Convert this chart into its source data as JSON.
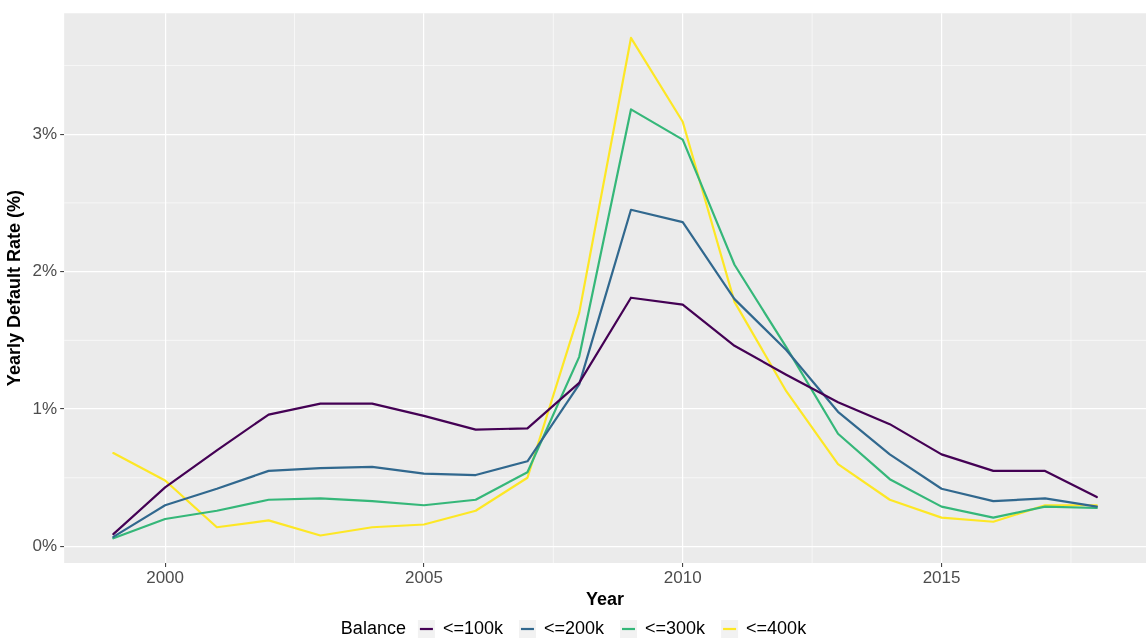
{
  "chart_data": {
    "type": "line",
    "xlabel": "Year",
    "ylabel": "Yearly Default Rate (%)",
    "legend_title": "Balance",
    "legend": "bottom",
    "grid": true,
    "x": [
      1999,
      2000,
      2001,
      2002,
      2003,
      2004,
      2005,
      2006,
      2007,
      2008,
      2009,
      2010,
      2011,
      2012,
      2013,
      2014,
      2015,
      2016,
      2017,
      2018
    ],
    "xlim": [
      1998.05,
      2018.95
    ],
    "xticks": [
      2000,
      2005,
      2010,
      2015
    ],
    "ylim": [
      -0.12,
      3.88
    ],
    "yticks": [
      {
        "value": 0,
        "label": "0%"
      },
      {
        "value": 1,
        "label": "1%"
      },
      {
        "value": 2,
        "label": "2%"
      },
      {
        "value": 3,
        "label": "3%"
      }
    ],
    "series": [
      {
        "name": "<=100k",
        "color": "#440154",
        "values": [
          0.09,
          0.43,
          0.7,
          0.96,
          1.04,
          1.04,
          0.95,
          0.85,
          0.86,
          1.19,
          1.81,
          1.76,
          1.46,
          1.25,
          1.05,
          0.89,
          0.67,
          0.55,
          0.55,
          0.36
        ]
      },
      {
        "name": "<=200k",
        "color": "#31688e",
        "values": [
          0.07,
          0.3,
          0.42,
          0.55,
          0.57,
          0.58,
          0.53,
          0.52,
          0.62,
          1.18,
          2.45,
          2.36,
          1.8,
          1.43,
          0.98,
          0.67,
          0.42,
          0.33,
          0.35,
          0.29
        ]
      },
      {
        "name": "<=300k",
        "color": "#35b779",
        "values": [
          0.06,
          0.2,
          0.26,
          0.34,
          0.35,
          0.33,
          0.3,
          0.34,
          0.54,
          1.38,
          3.18,
          2.96,
          2.05,
          1.45,
          0.82,
          0.49,
          0.29,
          0.21,
          0.29,
          0.28
        ]
      },
      {
        "name": "<=400k",
        "color": "#fde725",
        "values": [
          0.68,
          0.48,
          0.14,
          0.19,
          0.08,
          0.14,
          0.16,
          0.26,
          0.5,
          1.7,
          3.7,
          3.09,
          1.78,
          1.13,
          0.6,
          0.34,
          0.21,
          0.18,
          0.3,
          0.3
        ]
      }
    ]
  }
}
